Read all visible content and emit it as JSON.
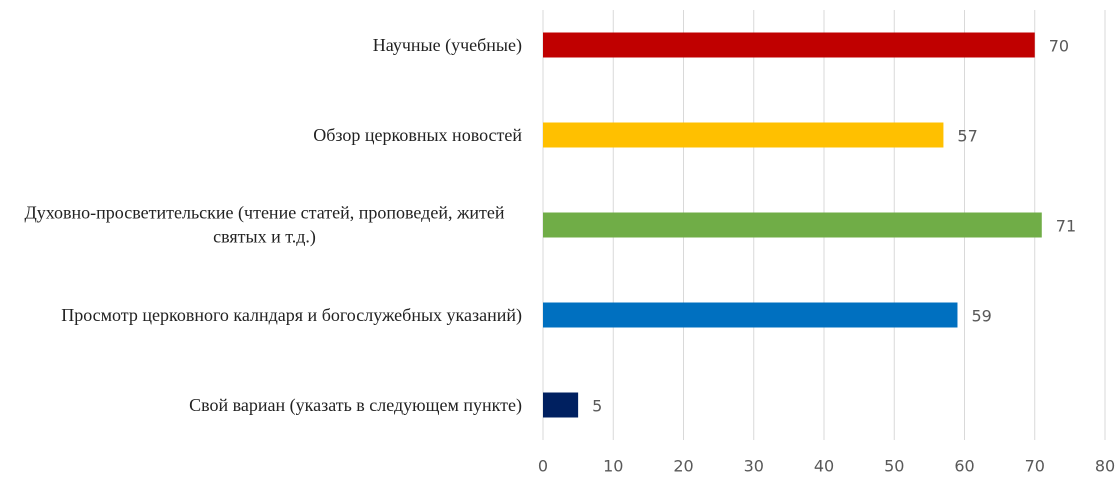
{
  "chart_data": {
    "type": "bar",
    "orientation": "horizontal",
    "categories": [
      "Научные (учебные)",
      "Обзор церковных новостей",
      "Духовно-просветительские (чтение статей, проповедей, житей святых и т.д.)",
      "Просмотр церковного калндаря и богослужебных указаний)",
      "Свой вариан (указать в следующем пункте)"
    ],
    "values": [
      70,
      57,
      71,
      59,
      5
    ],
    "colors": [
      "#c00000",
      "#ffc000",
      "#70ad47",
      "#0070c0",
      "#002060"
    ],
    "xlim": [
      0,
      80
    ],
    "xticks": [
      0,
      10,
      20,
      30,
      40,
      50,
      60,
      70,
      80
    ],
    "grid": true
  }
}
